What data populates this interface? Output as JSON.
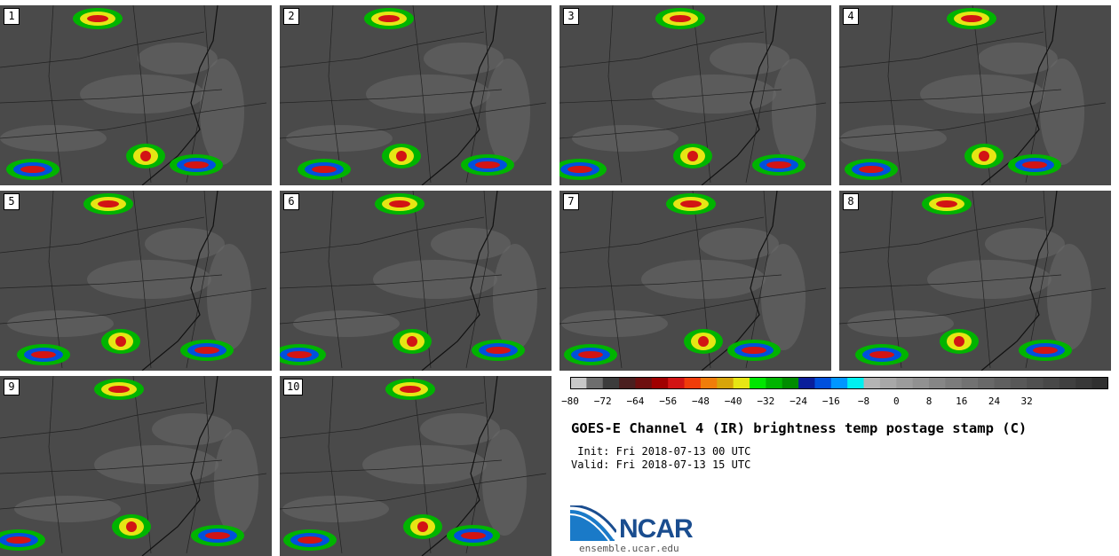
{
  "panels": [
    {
      "num": "1"
    },
    {
      "num": "2"
    },
    {
      "num": "3"
    },
    {
      "num": "4"
    },
    {
      "num": "5"
    },
    {
      "num": "6"
    },
    {
      "num": "7"
    },
    {
      "num": "8"
    },
    {
      "num": "9"
    },
    {
      "num": "10"
    }
  ],
  "colorbar": {
    "colors": [
      "#c8c8c8",
      "#6e6e6e",
      "#3c3c3c",
      "#4a1f1f",
      "#6e0f0f",
      "#a00000",
      "#d21414",
      "#f03c0a",
      "#f07d0a",
      "#d7a50a",
      "#e6e614",
      "#00e600",
      "#00b400",
      "#008c00",
      "#0a1e9b",
      "#0050dc",
      "#0096ff",
      "#00f0f0",
      "#b4b4b4",
      "#a8a8a8",
      "#9c9c9c",
      "#919191",
      "#868686",
      "#7c7c7c",
      "#727272",
      "#696969",
      "#606060",
      "#585858",
      "#505050",
      "#484848",
      "#404040",
      "#383838",
      "#303030"
    ],
    "ticks": [
      "−80",
      "−72",
      "−64",
      "−56",
      "−48",
      "−40",
      "−32",
      "−24",
      "−16",
      "−8",
      "0",
      "8",
      "16",
      "24",
      "32"
    ]
  },
  "title": "GOES-E Channel 4 (IR) brightness temp postage stamp (C)",
  "init": " Init: Fri 2018-07-13 00 UTC",
  "valid": "Valid: Fri 2018-07-13 15 UTC",
  "logo": {
    "text": "NCAR",
    "url": "ensemble.ucar.edu"
  }
}
